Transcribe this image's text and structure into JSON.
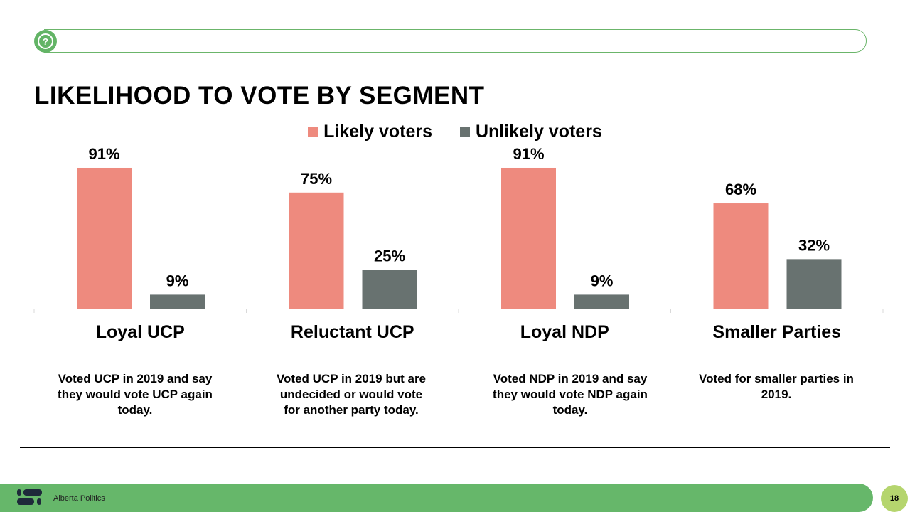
{
  "header": {
    "help_icon": "question-chat-icon"
  },
  "chart_data": {
    "type": "bar",
    "title": "LIKELIHOOD TO VOTE BY SEGMENT",
    "categories": [
      "Loyal UCP",
      "Reluctant UCP",
      "Loyal NDP",
      "Smaller Parties"
    ],
    "series": [
      {
        "name": "Likely voters",
        "values": [
          91,
          75,
          91,
          68
        ],
        "color": "#ee8a7e"
      },
      {
        "name": "Unlikely voters",
        "values": [
          9,
          25,
          9,
          32
        ],
        "color": "#687270"
      }
    ],
    "value_suffix": "%",
    "ylim": [
      0,
      100
    ],
    "legend": "top",
    "grid": false,
    "descriptions": [
      "Voted UCP in 2019 and say they would vote UCP again today.",
      "Voted UCP in 2019 but are undecided or would vote for another party today.",
      "Voted NDP in 2019 and say they would vote NDP again today.",
      "Voted for smaller parties in 2019."
    ]
  },
  "footer": {
    "brand": "Alberta Politics",
    "page": "18",
    "accent": "#66b76a"
  }
}
